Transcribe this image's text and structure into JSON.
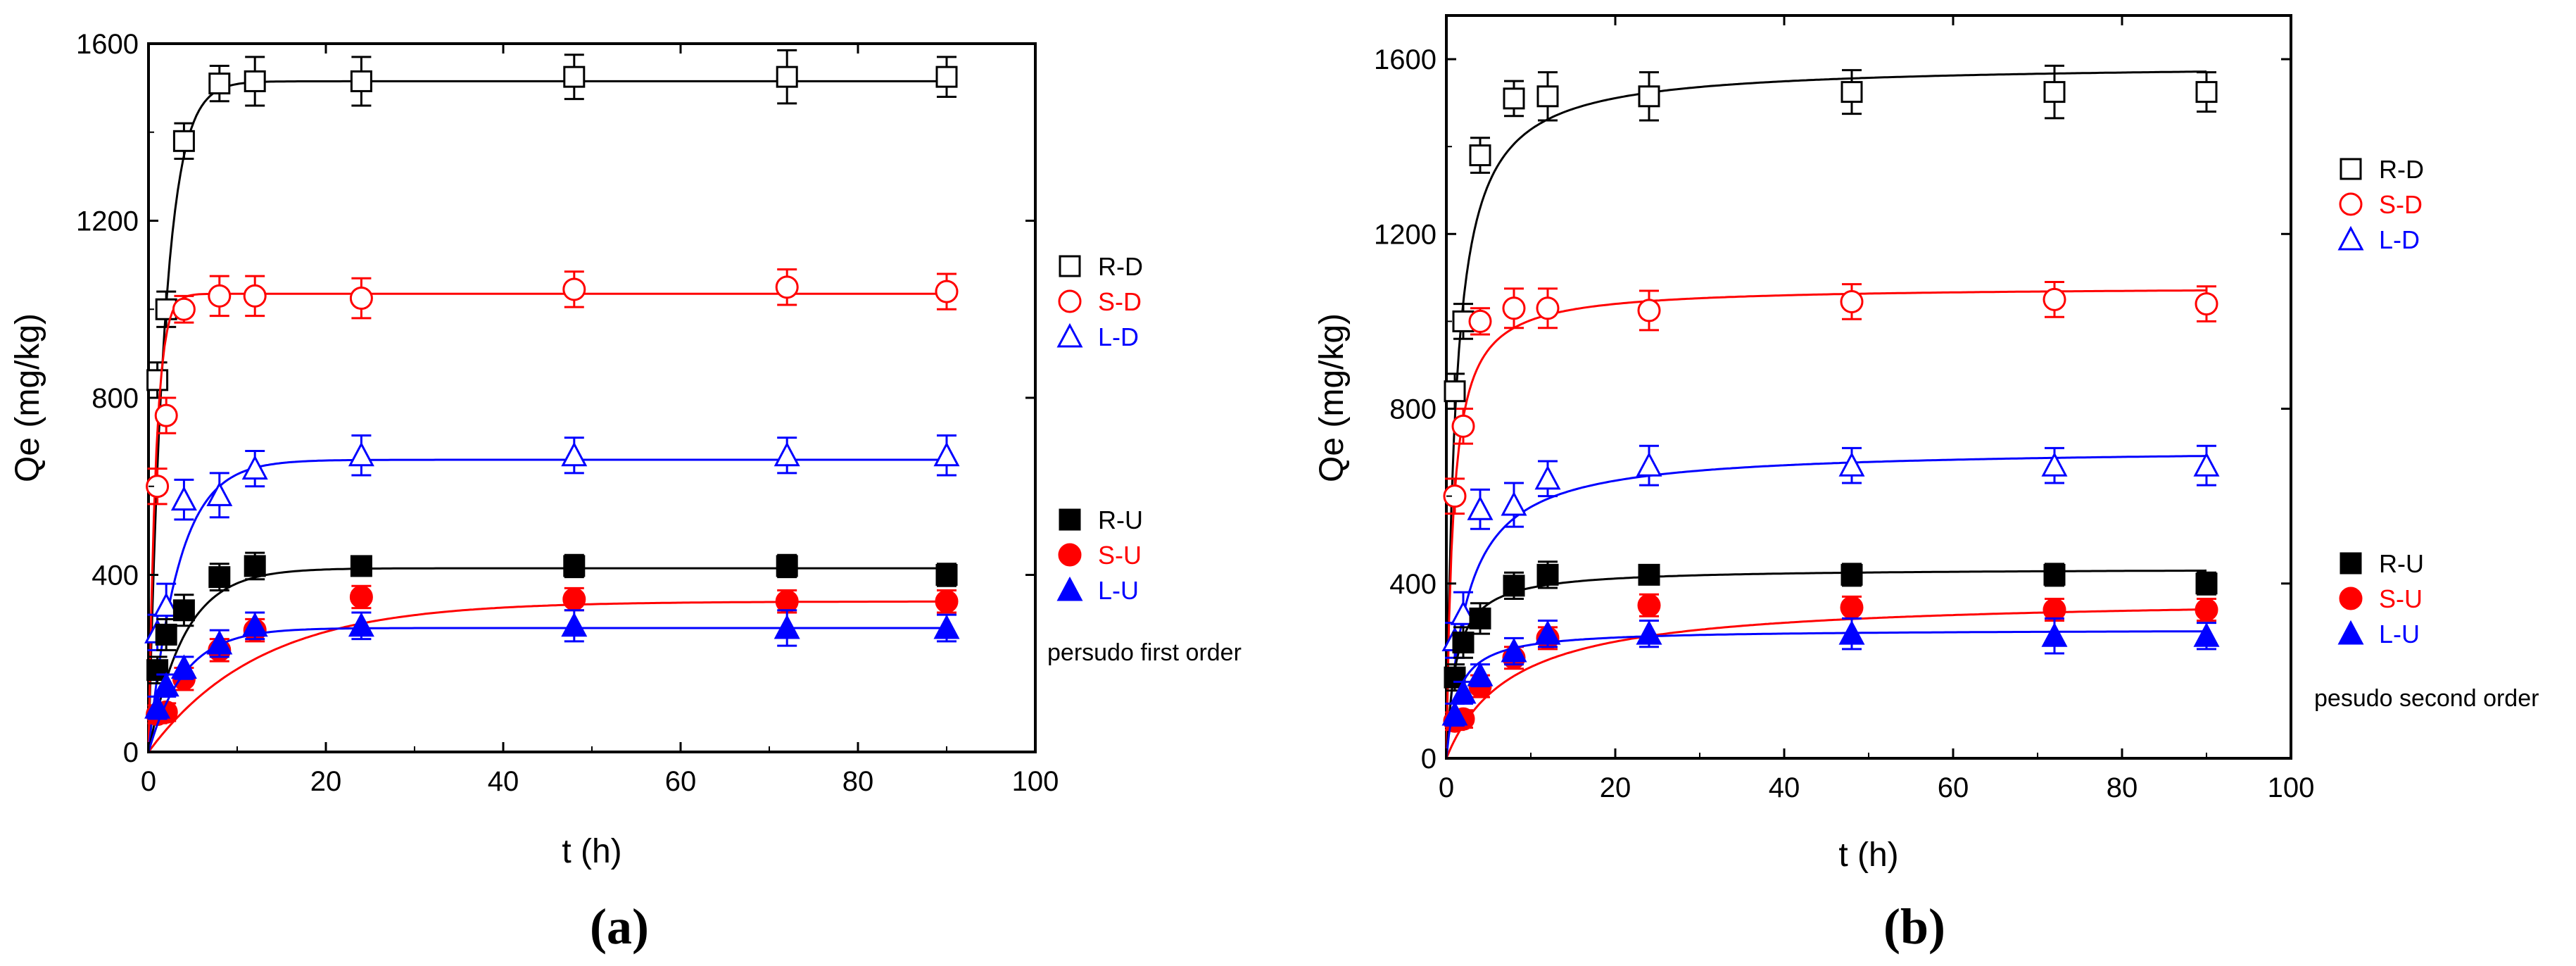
{
  "colors": {
    "R": "#000000",
    "S": "#ff0000",
    "L": "#0000ff",
    "axis": "#000000"
  },
  "chart_data": [
    {
      "type": "scatter",
      "panel_label": "(a)",
      "title": "",
      "xlabel": "t (h)",
      "ylabel": "Qe (mg/kg)",
      "xlim": [
        0,
        100
      ],
      "ylim": [
        0,
        1600
      ],
      "xticks": [
        0,
        20,
        40,
        60,
        80,
        100
      ],
      "yticks": [
        0,
        400,
        800,
        1200,
        1600
      ],
      "fit_model": "first",
      "note": "persudo first order",
      "legend_placement": "right",
      "legend_dashed": [
        "R-D",
        "S-D",
        "L-D"
      ],
      "legend_upland": [
        "R-U",
        "S-U",
        "L-U"
      ],
      "x": [
        1,
        2,
        4,
        8,
        12,
        24,
        48,
        72,
        90
      ],
      "series": [
        {
          "name": "R-D",
          "color_key": "R",
          "marker": "square-open",
          "values": [
            840,
            1000,
            1380,
            1510,
            1515,
            1515,
            1525,
            1525,
            1525
          ],
          "errors": [
            40,
            40,
            40,
            40,
            55,
            55,
            50,
            60,
            45
          ],
          "fit": {
            "qe": 1515,
            "k": 0.55
          }
        },
        {
          "name": "S-D",
          "color_key": "S",
          "marker": "circle-open",
          "values": [
            600,
            760,
            1000,
            1030,
            1030,
            1025,
            1045,
            1050,
            1040
          ],
          "errors": [
            40,
            40,
            30,
            45,
            45,
            45,
            40,
            40,
            40
          ],
          "fit": {
            "qe": 1035,
            "k": 1.2
          }
        },
        {
          "name": "L-D",
          "color_key": "L",
          "marker": "triangle-open",
          "values": [
            270,
            330,
            570,
            580,
            640,
            670,
            670,
            670,
            670
          ],
          "errors": [
            40,
            50,
            45,
            50,
            40,
            45,
            40,
            40,
            45
          ],
          "fit": {
            "qe": 660,
            "k": 0.3
          }
        },
        {
          "name": "R-U",
          "color_key": "R",
          "marker": "square-filled",
          "values": [
            185,
            265,
            320,
            395,
            420,
            420,
            420,
            420,
            400
          ],
          "errors": [
            30,
            35,
            35,
            30,
            30,
            15,
            25,
            25,
            25
          ],
          "fit": {
            "qe": 415,
            "k": 0.25
          }
        },
        {
          "name": "S-U",
          "color_key": "S",
          "marker": "circle-filled",
          "values": [
            85,
            90,
            165,
            230,
            275,
            350,
            345,
            340,
            340
          ],
          "errors": [
            20,
            20,
            25,
            25,
            25,
            25,
            25,
            25,
            25
          ],
          "fit": {
            "qe": 340,
            "k": 0.08
          }
        },
        {
          "name": "L-U",
          "color_key": "L",
          "marker": "triangle-filled",
          "values": [
            100,
            150,
            190,
            245,
            285,
            285,
            285,
            280,
            280
          ],
          "errors": [
            25,
            25,
            25,
            30,
            30,
            30,
            35,
            40,
            30
          ],
          "fit": {
            "qe": 280,
            "k": 0.25
          }
        }
      ]
    },
    {
      "type": "scatter",
      "panel_label": "(b)",
      "title": "",
      "xlabel": "t (h)",
      "ylabel": "Qe (mg/kg)",
      "xlim": [
        0,
        100
      ],
      "ylim": [
        0,
        1700
      ],
      "xticks": [
        0,
        20,
        40,
        60,
        80,
        100
      ],
      "yticks": [
        0,
        400,
        800,
        1200,
        1600
      ],
      "fit_model": "second",
      "note": "pesudo second order",
      "legend_placement": "right",
      "legend_dashed": [
        "R-D",
        "S-D",
        "L-D"
      ],
      "legend_upland": [
        "R-U",
        "S-U",
        "L-U"
      ],
      "x": [
        1,
        2,
        4,
        8,
        12,
        24,
        48,
        72,
        90
      ],
      "series": [
        {
          "name": "R-D",
          "color_key": "R",
          "marker": "square-open",
          "values": [
            840,
            1000,
            1380,
            1510,
            1515,
            1515,
            1525,
            1525,
            1525
          ],
          "errors": [
            40,
            40,
            40,
            40,
            55,
            55,
            50,
            60,
            45
          ],
          "fit": {
            "qe": 1590,
            "k": 0.0006
          }
        },
        {
          "name": "S-D",
          "color_key": "S",
          "marker": "circle-open",
          "values": [
            600,
            760,
            1000,
            1030,
            1030,
            1025,
            1045,
            1050,
            1040
          ],
          "errors": [
            40,
            40,
            30,
            45,
            45,
            45,
            40,
            40,
            40
          ],
          "fit": {
            "qe": 1080,
            "k": 0.0012
          }
        },
        {
          "name": "L-D",
          "color_key": "L",
          "marker": "triangle-open",
          "values": [
            270,
            330,
            570,
            580,
            640,
            670,
            670,
            670,
            670
          ],
          "errors": [
            40,
            50,
            45,
            50,
            40,
            45,
            40,
            40,
            45
          ],
          "fit": {
            "qe": 710,
            "k": 0.0006
          }
        },
        {
          "name": "R-U",
          "color_key": "R",
          "marker": "square-filled",
          "values": [
            185,
            265,
            320,
            395,
            420,
            420,
            420,
            420,
            400
          ],
          "errors": [
            30,
            35,
            35,
            30,
            30,
            15,
            25,
            25,
            25
          ],
          "fit": {
            "qe": 435,
            "k": 0.002
          }
        },
        {
          "name": "S-U",
          "color_key": "S",
          "marker": "circle-filled",
          "values": [
            85,
            90,
            165,
            230,
            275,
            350,
            345,
            340,
            340
          ],
          "errors": [
            20,
            20,
            25,
            25,
            25,
            25,
            25,
            25,
            25
          ],
          "fit": {
            "qe": 370,
            "k": 0.00035
          }
        },
        {
          "name": "L-U",
          "color_key": "L",
          "marker": "triangle-filled",
          "values": [
            100,
            150,
            190,
            245,
            285,
            285,
            285,
            280,
            280
          ],
          "errors": [
            25,
            25,
            25,
            30,
            30,
            30,
            35,
            40,
            30
          ],
          "fit": {
            "qe": 295,
            "k": 0.0025
          }
        }
      ]
    }
  ]
}
